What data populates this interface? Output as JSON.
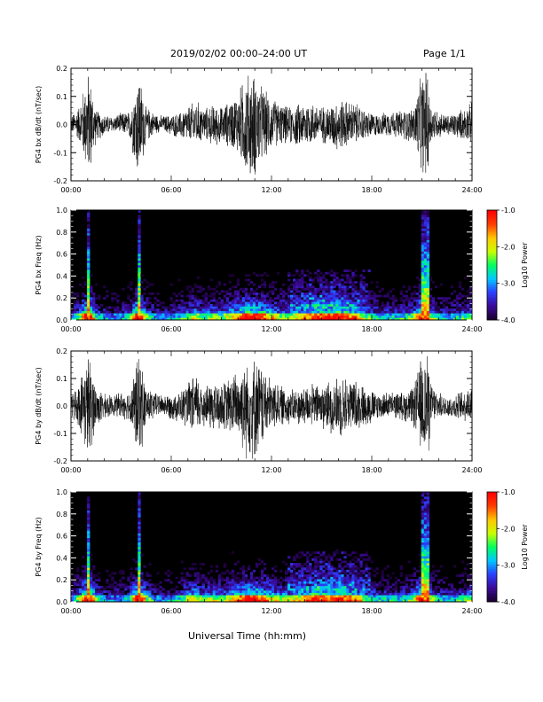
{
  "header": {
    "title": "2019/02/02   00:00–24:00 UT",
    "page": "Page 1/1"
  },
  "footer": {
    "xlabel": "Universal Time (hh:mm)"
  },
  "colors": {
    "trace": "#000000",
    "spectrogram_background": "#000000",
    "colorbar": [
      "#1a0030",
      "#3a0a9a",
      "#2a40ff",
      "#00c8ff",
      "#00ff60",
      "#c8ff00",
      "#ffc800",
      "#ff4000",
      "#ff0000"
    ]
  },
  "chart_data": [
    {
      "type": "line",
      "ylabel": "PG4 bx dB/dt (nT/sec)",
      "xlim": [
        0,
        24
      ],
      "ylim": [
        -0.2,
        0.2
      ],
      "xticks": [
        "00:00",
        "06:00",
        "12:00",
        "18:00",
        "24:00"
      ],
      "yticks": [
        "-0.2",
        "-0.1",
        "0.0",
        "0.1",
        "0.2"
      ],
      "ytick_values": [
        -0.2,
        -0.1,
        0.0,
        0.1,
        0.2
      ],
      "series": [
        {
          "x": [
            0,
            0.5,
            1.0,
            1.1,
            1.5,
            2,
            2.5,
            3,
            3.5,
            4.0,
            4.1,
            4.5,
            5,
            5.5,
            6,
            6.5,
            7,
            7.5,
            8,
            8.5,
            9,
            9.5,
            10,
            10.5,
            11,
            11.5,
            12,
            12.5,
            13,
            13.5,
            14,
            14.5,
            15,
            15.5,
            16,
            16.5,
            17,
            17.5,
            18,
            18.5,
            19,
            19.5,
            20,
            20.5,
            21,
            21.4,
            21.5,
            22,
            22.5,
            23,
            23.5,
            24
          ],
          "y": [
            0.03,
            0.07,
            0.2,
            0.2,
            0.06,
            0.04,
            0.03,
            0.04,
            0.05,
            0.2,
            0.2,
            0.07,
            0.04,
            0.03,
            0.04,
            0.05,
            0.07,
            0.09,
            0.06,
            0.08,
            0.07,
            0.09,
            0.12,
            0.2,
            0.2,
            0.14,
            0.1,
            0.08,
            0.07,
            0.08,
            0.09,
            0.08,
            0.07,
            0.08,
            0.1,
            0.09,
            0.08,
            0.06,
            0.05,
            0.04,
            0.05,
            0.05,
            0.06,
            0.07,
            0.2,
            0.2,
            0.08,
            0.05,
            0.04,
            0.05,
            0.06,
            0.08
          ]
        }
      ]
    },
    {
      "type": "heatmap",
      "ylabel": "PG4 bx Freq (Hz)",
      "xlim": [
        0,
        24
      ],
      "ylim": [
        0.0,
        1.0
      ],
      "xticks": [
        "00:00",
        "06:00",
        "12:00",
        "18:00",
        "24:00"
      ],
      "yticks": [
        "0.0",
        "0.2",
        "0.4",
        "0.6",
        "0.8",
        "1.0"
      ],
      "ytick_values": [
        0.0,
        0.2,
        0.4,
        0.6,
        0.8,
        1.0
      ],
      "colorbar": {
        "label": "Log10 Power",
        "range": [
          -4.0,
          -1.0
        ],
        "ticks": [
          "-1.0",
          "-2.0",
          "-3.0",
          "-4.0"
        ],
        "tick_values": [
          -1.0,
          -2.0,
          -3.0,
          -4.0
        ]
      },
      "hours": [
        0,
        0.5,
        1.0,
        1.1,
        1.5,
        2,
        2.5,
        3,
        3.5,
        4.0,
        4.1,
        4.5,
        5,
        5.5,
        6,
        6.5,
        7,
        7.5,
        8,
        8.5,
        9,
        9.5,
        10,
        10.5,
        11,
        11.5,
        12,
        12.5,
        13,
        13.5,
        14,
        14.5,
        15,
        15.5,
        16,
        16.5,
        17,
        17.5,
        18,
        18.5,
        19,
        19.5,
        20,
        20.5,
        21,
        21.4,
        21.5,
        22,
        22.5,
        23,
        23.5,
        24
      ],
      "activity": [
        0.35,
        0.55,
        1.0,
        1.0,
        0.5,
        0.4,
        0.35,
        0.4,
        0.45,
        1.0,
        1.0,
        0.55,
        0.4,
        0.35,
        0.4,
        0.45,
        0.55,
        0.65,
        0.5,
        0.6,
        0.55,
        0.65,
        0.75,
        0.9,
        0.9,
        0.8,
        0.7,
        0.6,
        0.6,
        0.65,
        0.75,
        0.8,
        0.85,
        0.85,
        0.9,
        0.8,
        0.75,
        0.6,
        0.5,
        0.45,
        0.45,
        0.45,
        0.5,
        0.55,
        1.0,
        1.0,
        0.6,
        0.45,
        0.4,
        0.45,
        0.5,
        0.6
      ]
    },
    {
      "type": "line",
      "ylabel": "PG4 by dB/dt (nT/sec)",
      "xlim": [
        0,
        24
      ],
      "ylim": [
        -0.2,
        0.2
      ],
      "xticks": [
        "00:00",
        "06:00",
        "12:00",
        "18:00",
        "24:00"
      ],
      "yticks": [
        "-0.2",
        "-0.1",
        "0.0",
        "0.1",
        "0.2"
      ],
      "ytick_values": [
        -0.2,
        -0.1,
        0.0,
        0.1,
        0.2
      ],
      "series": [
        {
          "x": [
            0,
            0.5,
            1.0,
            1.1,
            1.5,
            2,
            2.5,
            3,
            3.5,
            4.0,
            4.1,
            4.5,
            5,
            5.5,
            6,
            6.5,
            7,
            7.5,
            8,
            8.5,
            9,
            9.5,
            10,
            10.5,
            11,
            11.5,
            12,
            12.5,
            13,
            13.5,
            14,
            14.5,
            15,
            15.5,
            16,
            16.5,
            17,
            17.5,
            18,
            18.5,
            19,
            19.5,
            20,
            20.5,
            21,
            21.4,
            21.5,
            22,
            22.5,
            23,
            23.5,
            24
          ],
          "y": [
            0.04,
            0.09,
            0.2,
            0.2,
            0.08,
            0.05,
            0.04,
            0.05,
            0.06,
            0.2,
            0.2,
            0.08,
            0.05,
            0.04,
            0.05,
            0.06,
            0.09,
            0.12,
            0.08,
            0.1,
            0.09,
            0.11,
            0.14,
            0.2,
            0.2,
            0.15,
            0.1,
            0.08,
            0.07,
            0.07,
            0.08,
            0.08,
            0.09,
            0.1,
            0.12,
            0.11,
            0.1,
            0.08,
            0.07,
            0.05,
            0.05,
            0.05,
            0.06,
            0.08,
            0.2,
            0.2,
            0.09,
            0.05,
            0.04,
            0.05,
            0.06,
            0.08
          ]
        }
      ]
    },
    {
      "type": "heatmap",
      "ylabel": "PG4 by Freq (Hz)",
      "xlim": [
        0,
        24
      ],
      "ylim": [
        0.0,
        1.0
      ],
      "xticks": [
        "00:00",
        "06:00",
        "12:00",
        "18:00",
        "24:00"
      ],
      "yticks": [
        "0.0",
        "0.2",
        "0.4",
        "0.6",
        "0.8",
        "1.0"
      ],
      "ytick_values": [
        0.0,
        0.2,
        0.4,
        0.6,
        0.8,
        1.0
      ],
      "colorbar": {
        "label": "Log10 Power",
        "range": [
          -4.0,
          -1.0
        ],
        "ticks": [
          "-1.0",
          "-2.0",
          "-3.0",
          "-4.0"
        ],
        "tick_values": [
          -1.0,
          -2.0,
          -3.0,
          -4.0
        ]
      },
      "hours": [
        0,
        0.5,
        1.0,
        1.1,
        1.5,
        2,
        2.5,
        3,
        3.5,
        4.0,
        4.1,
        4.5,
        5,
        5.5,
        6,
        6.5,
        7,
        7.5,
        8,
        8.5,
        9,
        9.5,
        10,
        10.5,
        11,
        11.5,
        12,
        12.5,
        13,
        13.5,
        14,
        14.5,
        15,
        15.5,
        16,
        16.5,
        17,
        17.5,
        18,
        18.5,
        19,
        19.5,
        20,
        20.5,
        21,
        21.4,
        21.5,
        22,
        22.5,
        23,
        23.5,
        24
      ],
      "activity": [
        0.35,
        0.6,
        1.0,
        1.0,
        0.55,
        0.4,
        0.35,
        0.4,
        0.45,
        1.0,
        1.0,
        0.6,
        0.4,
        0.35,
        0.4,
        0.45,
        0.6,
        0.7,
        0.55,
        0.6,
        0.55,
        0.65,
        0.75,
        0.9,
        0.9,
        0.8,
        0.65,
        0.6,
        0.6,
        0.65,
        0.75,
        0.85,
        0.85,
        0.8,
        0.85,
        0.8,
        0.75,
        0.6,
        0.5,
        0.45,
        0.45,
        0.45,
        0.5,
        0.55,
        1.0,
        1.0,
        0.6,
        0.45,
        0.4,
        0.45,
        0.5,
        0.6
      ]
    }
  ]
}
